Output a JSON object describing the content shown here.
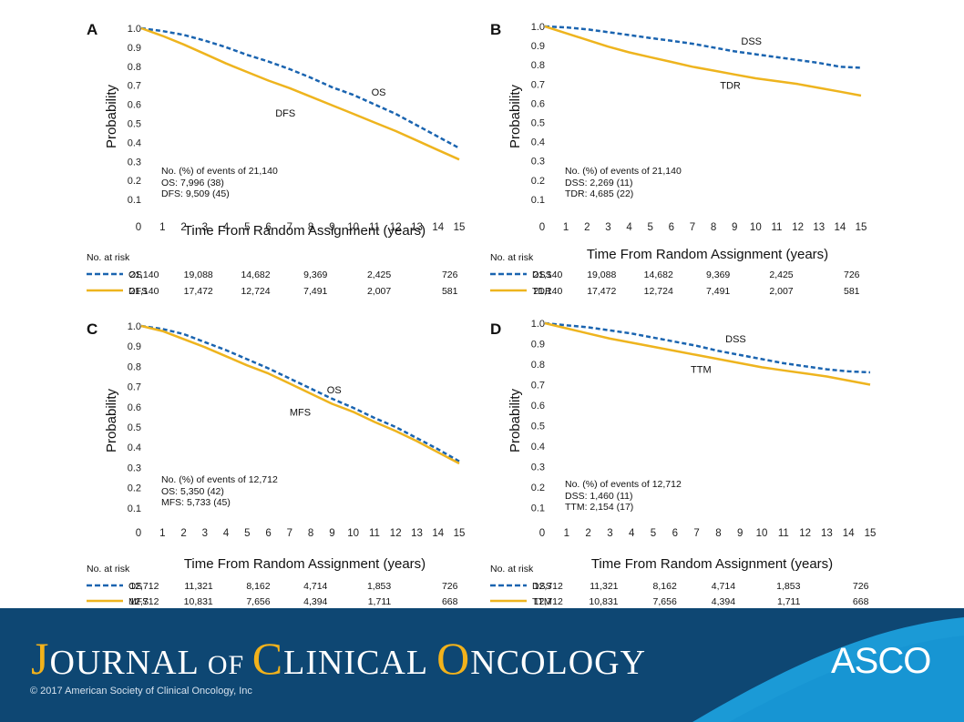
{
  "chart_data": [
    {
      "panel": "A",
      "type": "line",
      "ylabel": "Probability",
      "xlabel": "Time From Random Assignment (years)",
      "xlim": [
        0,
        15
      ],
      "ylim": [
        0,
        1.0
      ],
      "xticks": [
        "0",
        "1",
        "2",
        "3",
        "4",
        "5",
        "6",
        "7",
        "8",
        "9",
        "10",
        "11",
        "12",
        "13",
        "14",
        "15"
      ],
      "yticks": [
        "0.1",
        "0.2",
        "0.3",
        "0.4",
        "0.5",
        "0.6",
        "0.7",
        "0.8",
        "0.9",
        "1.0"
      ],
      "series": [
        {
          "name": "OS",
          "style": "dashed",
          "color": "#1a64b0",
          "x": [
            0,
            1,
            2,
            3,
            4,
            5,
            6,
            7,
            8,
            9,
            10,
            11,
            12,
            13,
            14,
            15
          ],
          "y": [
            1.0,
            0.985,
            0.965,
            0.935,
            0.9,
            0.86,
            0.825,
            0.785,
            0.74,
            0.69,
            0.65,
            0.6,
            0.55,
            0.49,
            0.43,
            0.37
          ]
        },
        {
          "name": "DFS",
          "style": "solid",
          "color": "#eeb41e",
          "x": [
            0,
            1,
            2,
            3,
            4,
            5,
            6,
            7,
            8,
            9,
            10,
            11,
            12,
            13,
            14,
            15
          ],
          "y": [
            1.0,
            0.96,
            0.915,
            0.865,
            0.815,
            0.77,
            0.725,
            0.685,
            0.64,
            0.595,
            0.55,
            0.505,
            0.46,
            0.41,
            0.36,
            0.31
          ]
        }
      ],
      "curve_labels": [
        {
          "text": "OS",
          "x": 11.2,
          "y": 0.665
        },
        {
          "text": "DFS",
          "x": 6.8,
          "y": 0.555
        }
      ],
      "events": {
        "heading": "No. (%) of events of 21,140",
        "lines": [
          "OS: 7,996 (38)",
          "DFS: 9,509 (45)"
        ]
      },
      "risk": {
        "title": "No. at risk",
        "rows": [
          {
            "style": "dashed",
            "label": "OS",
            "values": [
              "21,140",
              "19,088",
              "14,682",
              "9,369",
              "2,425",
              "726"
            ]
          },
          {
            "style": "solid",
            "label": "DFS",
            "values": [
              "21,140",
              "17,472",
              "12,724",
              "7,491",
              "2,007",
              "581"
            ]
          }
        ]
      }
    },
    {
      "panel": "B",
      "type": "line",
      "ylabel": "Probability",
      "xlabel": "Time From Random Assignment (years)",
      "xlim": [
        0,
        15
      ],
      "ylim": [
        0,
        1.0
      ],
      "xticks": [
        "0",
        "1",
        "2",
        "3",
        "4",
        "5",
        "6",
        "7",
        "8",
        "9",
        "10",
        "11",
        "12",
        "13",
        "14",
        "15"
      ],
      "yticks": [
        "0.1",
        "0.2",
        "0.3",
        "0.4",
        "0.5",
        "0.6",
        "0.7",
        "0.8",
        "0.9",
        "1.0"
      ],
      "series": [
        {
          "name": "DSS",
          "style": "dashed",
          "color": "#1a64b0",
          "x": [
            0,
            1,
            2,
            3,
            4,
            5,
            6,
            7,
            8,
            9,
            10,
            11,
            12,
            13,
            14,
            15
          ],
          "y": [
            1.0,
            0.995,
            0.985,
            0.97,
            0.955,
            0.94,
            0.925,
            0.91,
            0.89,
            0.87,
            0.855,
            0.84,
            0.825,
            0.81,
            0.79,
            0.785
          ]
        },
        {
          "name": "TDR",
          "style": "solid",
          "color": "#eeb41e",
          "x": [
            0,
            1,
            2,
            3,
            4,
            5,
            6,
            7,
            8,
            9,
            10,
            11,
            12,
            13,
            14,
            15
          ],
          "y": [
            1.0,
            0.965,
            0.93,
            0.895,
            0.865,
            0.84,
            0.815,
            0.79,
            0.77,
            0.75,
            0.73,
            0.715,
            0.7,
            0.68,
            0.66,
            0.64
          ]
        }
      ],
      "curve_labels": [
        {
          "text": "DSS",
          "x": 9.8,
          "y": 0.925
        },
        {
          "text": "TDR",
          "x": 8.8,
          "y": 0.695
        }
      ],
      "events": {
        "heading": "No. (%) of events of 21,140",
        "lines": [
          "DSS: 2,269 (11)",
          "TDR: 4,685 (22)"
        ]
      },
      "risk": {
        "title": "No. at risk",
        "rows": [
          {
            "style": "dashed",
            "label": "DSS",
            "values": [
              "21,140",
              "19,088",
              "14,682",
              "9,369",
              "2,425",
              "726"
            ]
          },
          {
            "style": "solid",
            "label": "TDR",
            "values": [
              "21,140",
              "17,472",
              "12,724",
              "7,491",
              "2,007",
              "581"
            ]
          }
        ]
      }
    },
    {
      "panel": "C",
      "type": "line",
      "ylabel": "Probability",
      "xlabel": "Time From Random Assignment (years)",
      "xlim": [
        0,
        15
      ],
      "ylim": [
        0,
        1.0
      ],
      "xticks": [
        "0",
        "1",
        "2",
        "3",
        "4",
        "5",
        "6",
        "7",
        "8",
        "9",
        "10",
        "11",
        "12",
        "13",
        "14",
        "15"
      ],
      "yticks": [
        "0.1",
        "0.2",
        "0.3",
        "0.4",
        "0.5",
        "0.6",
        "0.7",
        "0.8",
        "0.9",
        "1.0"
      ],
      "series": [
        {
          "name": "OS",
          "style": "dashed",
          "color": "#1a64b0",
          "x": [
            0,
            1,
            2,
            3,
            4,
            5,
            6,
            7,
            8,
            9,
            10,
            11,
            12,
            13,
            14,
            15
          ],
          "y": [
            1.0,
            0.985,
            0.96,
            0.92,
            0.88,
            0.835,
            0.79,
            0.74,
            0.69,
            0.64,
            0.595,
            0.545,
            0.5,
            0.445,
            0.39,
            0.33
          ]
        },
        {
          "name": "MFS",
          "style": "solid",
          "color": "#eeb41e",
          "x": [
            0,
            1,
            2,
            3,
            4,
            5,
            6,
            7,
            8,
            9,
            10,
            11,
            12,
            13,
            14,
            15
          ],
          "y": [
            1.0,
            0.975,
            0.935,
            0.895,
            0.85,
            0.805,
            0.765,
            0.715,
            0.665,
            0.615,
            0.575,
            0.525,
            0.48,
            0.43,
            0.375,
            0.32
          ]
        }
      ],
      "curve_labels": [
        {
          "text": "OS",
          "x": 9.1,
          "y": 0.685
        },
        {
          "text": "MFS",
          "x": 7.5,
          "y": 0.575
        }
      ],
      "events": {
        "heading": "No. (%) of events of 12,712",
        "lines": [
          "OS: 5,350 (42)",
          "MFS: 5,733 (45)"
        ]
      },
      "risk": {
        "title": "No. at risk",
        "rows": [
          {
            "style": "dashed",
            "label": "OS",
            "values": [
              "12,712",
              "11,321",
              "8,162",
              "4,714",
              "1,853",
              "726"
            ]
          },
          {
            "style": "solid",
            "label": "MFS",
            "values": [
              "12,712",
              "10,831",
              "7,656",
              "4,394",
              "1,711",
              "668"
            ]
          }
        ]
      }
    },
    {
      "panel": "D",
      "type": "line",
      "ylabel": "Probability",
      "xlabel": "Time From Random Assignment (years)",
      "xlim": [
        0,
        15
      ],
      "ylim": [
        0,
        1.0
      ],
      "xticks": [
        "0",
        "1",
        "2",
        "3",
        "4",
        "5",
        "6",
        "7",
        "8",
        "9",
        "10",
        "11",
        "12",
        "13",
        "14",
        "15"
      ],
      "yticks": [
        "0.1",
        "0.2",
        "0.3",
        "0.4",
        "0.5",
        "0.6",
        "0.7",
        "0.8",
        "0.9",
        "1.0"
      ],
      "series": [
        {
          "name": "DSS",
          "style": "dashed",
          "color": "#1a64b0",
          "x": [
            0,
            1,
            2,
            3,
            4,
            5,
            6,
            7,
            8,
            9,
            10,
            11,
            12,
            13,
            14,
            15
          ],
          "y": [
            1.0,
            0.99,
            0.98,
            0.965,
            0.95,
            0.93,
            0.91,
            0.89,
            0.865,
            0.845,
            0.825,
            0.805,
            0.79,
            0.775,
            0.765,
            0.76
          ]
        },
        {
          "name": "TTM",
          "style": "solid",
          "color": "#eeb41e",
          "x": [
            0,
            1,
            2,
            3,
            4,
            5,
            6,
            7,
            8,
            9,
            10,
            11,
            12,
            13,
            14,
            15
          ],
          "y": [
            1.0,
            0.975,
            0.95,
            0.925,
            0.905,
            0.885,
            0.865,
            0.845,
            0.825,
            0.805,
            0.785,
            0.77,
            0.755,
            0.74,
            0.72,
            0.7
          ]
        }
      ],
      "curve_labels": [
        {
          "text": "DSS",
          "x": 8.8,
          "y": 0.925
        },
        {
          "text": "TTM",
          "x": 7.2,
          "y": 0.775
        }
      ],
      "events": {
        "heading": "No. (%) of events of 12,712",
        "lines": [
          "DSS: 1,460 (11)",
          "TTM: 2,154 (17)"
        ]
      },
      "risk": {
        "title": "No. at risk",
        "rows": [
          {
            "style": "dashed",
            "label": "DSS",
            "values": [
              "12,712",
              "11,321",
              "8,162",
              "4,714",
              "1,853",
              "726"
            ]
          },
          {
            "style": "solid",
            "label": "TTM",
            "values": [
              "12,712",
              "10,831",
              "7,656",
              "4,394",
              "1,711",
              "668"
            ]
          }
        ]
      }
    }
  ],
  "footer": {
    "journal": {
      "c1": "J",
      "r1": "OURNAL ",
      "r2": "OF ",
      "c2": "C",
      "r3": "LINICAL ",
      "c3": "O",
      "r4": "NCOLOGY"
    },
    "copyright": "© 2017 American Society of Clinical Oncology, Inc",
    "logo_text": "ASCO",
    "colors": {
      "background": "#0e4773",
      "accent": "#f2b21b",
      "swoosh": "#1b9ad6"
    }
  }
}
